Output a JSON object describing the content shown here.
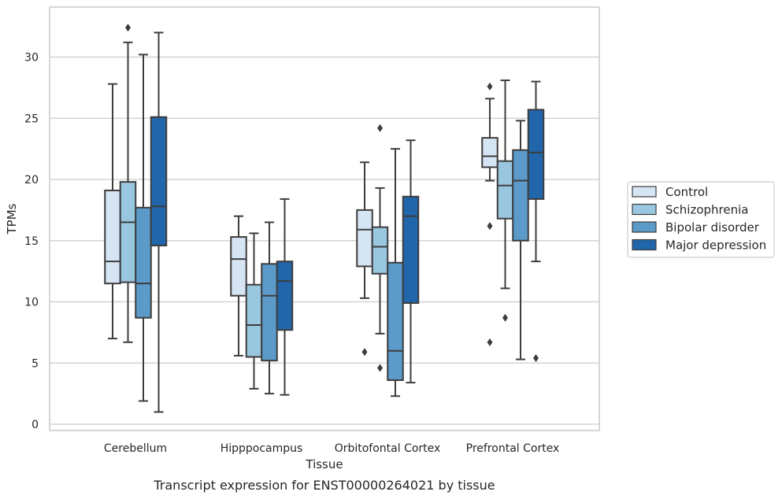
{
  "chart_data": {
    "type": "box",
    "title": "",
    "caption": "Transcript expression for ENST00000264021 by tissue",
    "xlabel": "Tissue",
    "ylabel": "TPMs",
    "ylim": [
      -0.5,
      34
    ],
    "yticks": [
      0,
      5,
      10,
      15,
      20,
      25,
      30
    ],
    "grid": "horizontal",
    "legend_position": "right",
    "categories": [
      "Cerebellum",
      "Hipppocampus",
      "Orbitofontal Cortex",
      "Prefrontal Cortex"
    ],
    "series": [
      {
        "name": "Control",
        "color": "#d6e5f4",
        "boxes": [
          {
            "whislo": 7.0,
            "q1": 11.5,
            "med": 13.3,
            "q3": 19.1,
            "whishi": 27.8,
            "fliers": []
          },
          {
            "whislo": 5.6,
            "q1": 10.5,
            "med": 13.5,
            "q3": 15.3,
            "whishi": 17.0,
            "fliers": []
          },
          {
            "whislo": 10.3,
            "q1": 12.9,
            "med": 15.9,
            "q3": 17.5,
            "whishi": 21.4,
            "fliers": [
              5.9
            ]
          },
          {
            "whislo": 19.9,
            "q1": 21.0,
            "med": 21.9,
            "q3": 23.4,
            "whishi": 26.6,
            "fliers": [
              27.6,
              16.2,
              6.7
            ]
          }
        ]
      },
      {
        "name": "Schizophrenia",
        "color": "#9ac7e0",
        "boxes": [
          {
            "whislo": 6.7,
            "q1": 11.6,
            "med": 16.5,
            "q3": 19.8,
            "whishi": 31.2,
            "fliers": [
              32.4
            ]
          },
          {
            "whislo": 2.9,
            "q1": 5.5,
            "med": 8.1,
            "q3": 11.4,
            "whishi": 15.6,
            "fliers": []
          },
          {
            "whislo": 7.4,
            "q1": 12.3,
            "med": 14.5,
            "q3": 16.1,
            "whishi": 19.3,
            "fliers": [
              24.2,
              4.6
            ]
          },
          {
            "whislo": 11.1,
            "q1": 16.8,
            "med": 19.5,
            "q3": 21.5,
            "whishi": 28.1,
            "fliers": [
              8.7
            ]
          }
        ]
      },
      {
        "name": "Bipolar disorder",
        "color": "#5b9ac9",
        "boxes": [
          {
            "whislo": 1.9,
            "q1": 8.7,
            "med": 11.5,
            "q3": 17.7,
            "whishi": 30.2,
            "fliers": []
          },
          {
            "whislo": 2.5,
            "q1": 5.2,
            "med": 10.5,
            "q3": 13.1,
            "whishi": 16.5,
            "fliers": []
          },
          {
            "whislo": 2.3,
            "q1": 3.6,
            "med": 6.0,
            "q3": 13.2,
            "whishi": 22.5,
            "fliers": []
          },
          {
            "whislo": 5.3,
            "q1": 15.0,
            "med": 19.9,
            "q3": 22.4,
            "whishi": 24.8,
            "fliers": []
          }
        ]
      },
      {
        "name": "Major depression",
        "color": "#2166aa",
        "boxes": [
          {
            "whislo": 1.0,
            "q1": 14.6,
            "med": 17.8,
            "q3": 25.1,
            "whishi": 32.0,
            "fliers": []
          },
          {
            "whislo": 2.4,
            "q1": 7.7,
            "med": 11.7,
            "q3": 13.3,
            "whishi": 18.4,
            "fliers": []
          },
          {
            "whislo": 3.4,
            "q1": 9.9,
            "med": 17.0,
            "q3": 18.6,
            "whishi": 23.2,
            "fliers": []
          },
          {
            "whislo": 13.3,
            "q1": 18.4,
            "med": 22.2,
            "q3": 25.7,
            "whishi": 28.0,
            "fliers": [
              5.4
            ]
          }
        ]
      }
    ]
  }
}
